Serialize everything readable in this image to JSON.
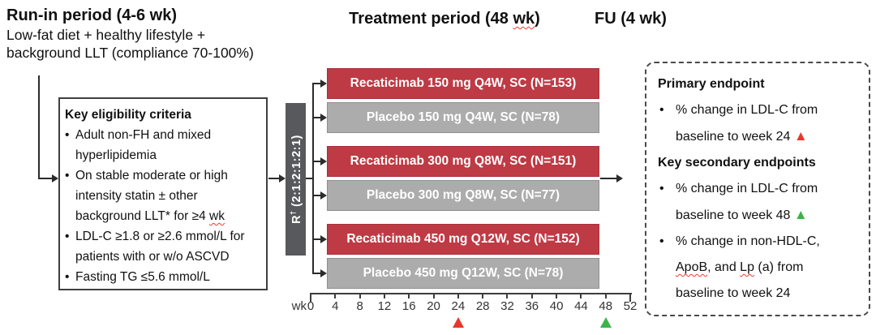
{
  "headers": {
    "run_in": {
      "title": "Run-in period (4-6 wk)",
      "line1": "Low-fat diet + healthy lifestyle +",
      "line2": "background LLT (compliance 70-100%)"
    },
    "treatment": {
      "pre": "Treatment period (48 ",
      "sq": "wk",
      "post": ")"
    },
    "fu": "FU (4 wk)"
  },
  "eligibility": {
    "title": "Key eligibility criteria",
    "bullets": [
      {
        "pre": "Adult non-FH and mixed hyperlipidemia",
        "sq": ""
      },
      {
        "pre": "On stable moderate or high intensity statin ± other background LLT* for ≥4 ",
        "sq": "wk"
      },
      {
        "pre": "LDL-C ≥1.8 or ≥2.6 mmol/L for patients with or w/o ASCVD",
        "sq": ""
      },
      {
        "pre": "Fasting TG ≤5.6 mmol/L",
        "sq": ""
      }
    ]
  },
  "randomization": {
    "r": "R",
    "dagger": "†",
    "ratio": "(2:1:2:1:2:1)"
  },
  "arms": [
    {
      "label": "Recaticimab 150 mg Q4W, SC (N=153)",
      "type": "active"
    },
    {
      "label": "Placebo 150 mg Q4W, SC (N=78)",
      "type": "placebo"
    },
    {
      "label": "Recaticimab 300 mg Q8W, SC (N=151)",
      "type": "active"
    },
    {
      "label": "Placebo 300 mg Q8W, SC (N=77)",
      "type": "placebo"
    },
    {
      "label": "Recaticimab 450 mg Q12W, SC (N=152)",
      "type": "active"
    },
    {
      "label": "Placebo 450 mg Q12W, SC (N=78)",
      "type": "placebo"
    }
  ],
  "axis": {
    "unit_label": "wk",
    "weeks": [
      0,
      4,
      8,
      12,
      16,
      20,
      24,
      28,
      32,
      36,
      40,
      44,
      48,
      52
    ],
    "primary_marker_week": 24,
    "secondary_marker_week": 48
  },
  "endpoints": {
    "primary_title": "Primary endpoint",
    "primary_item": {
      "pre": "% change in LDL-C from baseline to week 24 "
    },
    "secondary_title": "Key secondary endpoints",
    "secondary_item1": {
      "pre": "% change in LDL-C from baseline to week 48 "
    },
    "secondary_item2": {
      "s1": "% change in non-HDL-C, ",
      "sq1": "ApoB",
      "s2": ", and ",
      "sq2": "Lp",
      "s3": " (a) from baseline to week 24"
    }
  },
  "glyphs": {
    "bullet": "•",
    "triangle": "▲"
  },
  "colors": {
    "recaticimab_red": "#BE3A44",
    "placebo_gray": "#ACACAC",
    "randomization_gray": "#57595C",
    "marker_red": "#E8382D",
    "marker_green": "#3BB54A"
  }
}
